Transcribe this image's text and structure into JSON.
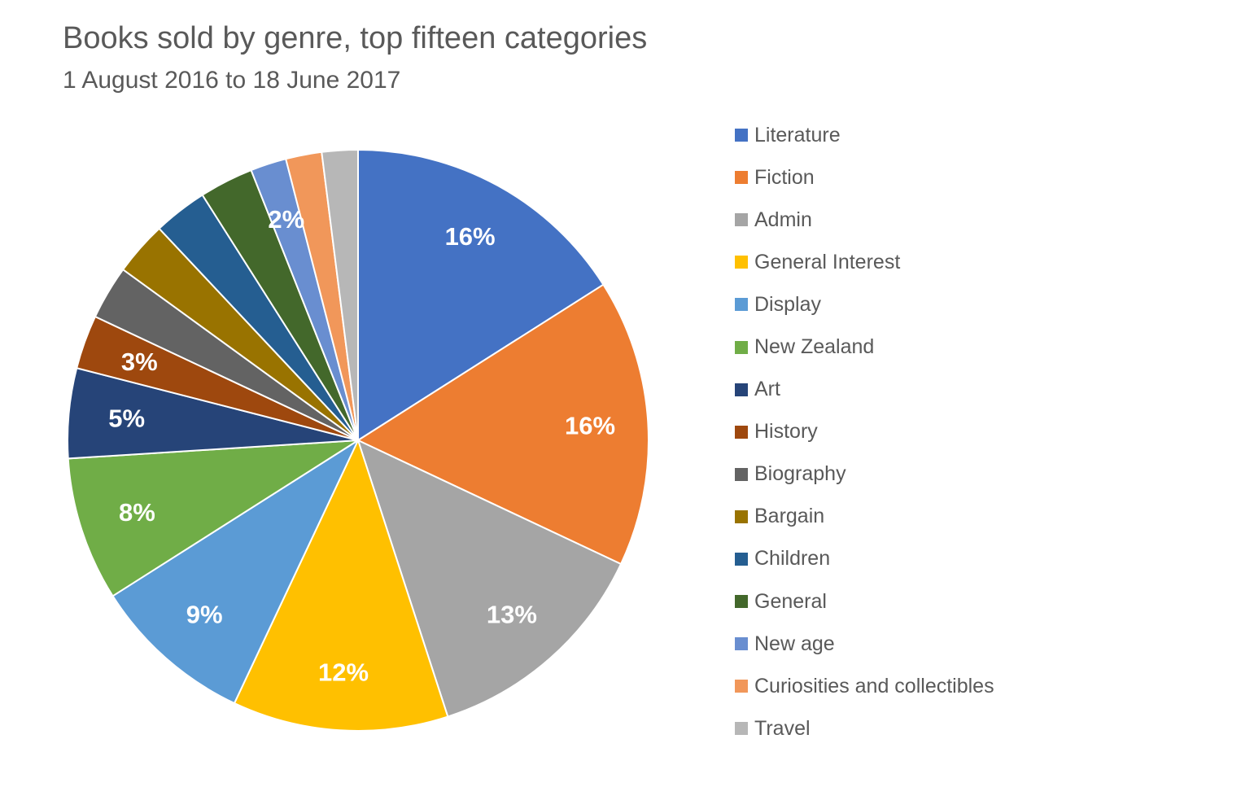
{
  "chart_data": {
    "type": "pie",
    "title": "Books sold by genre, top fifteen categories",
    "subtitle": "1 August 2016 to 18 June 2017",
    "legend_position": "right",
    "slices": [
      {
        "name": "Literature",
        "value": 16,
        "label": "16%",
        "color": "#4472C4"
      },
      {
        "name": "Fiction",
        "value": 16,
        "label": "16%",
        "color": "#ED7D31"
      },
      {
        "name": "Admin",
        "value": 13,
        "label": "13%",
        "color": "#A5A5A5"
      },
      {
        "name": "General Interest",
        "value": 12,
        "label": "12%",
        "color": "#FFC000"
      },
      {
        "name": "Display",
        "value": 9,
        "label": "9%",
        "color": "#5B9BD5"
      },
      {
        "name": "New Zealand",
        "value": 8,
        "label": "8%",
        "color": "#70AD47"
      },
      {
        "name": "Art",
        "value": 5,
        "label": "5%",
        "color": "#264478"
      },
      {
        "name": "History",
        "value": 3,
        "label": "3%",
        "color": "#9E480E"
      },
      {
        "name": "Biography",
        "value": 3,
        "label": "",
        "color": "#636363"
      },
      {
        "name": "Bargain",
        "value": 3,
        "label": "",
        "color": "#997300"
      },
      {
        "name": "Children",
        "value": 3,
        "label": "",
        "color": "#255E91"
      },
      {
        "name": "General",
        "value": 3,
        "label": "",
        "color": "#43682B"
      },
      {
        "name": "New age",
        "value": 2,
        "label": "2%",
        "color": "#698ED0"
      },
      {
        "name": "Curiosities and collectibles",
        "value": 2,
        "label": "",
        "color": "#F1975A"
      },
      {
        "name": "Travel",
        "value": 2,
        "label": "",
        "color": "#B7B7B7"
      }
    ]
  }
}
